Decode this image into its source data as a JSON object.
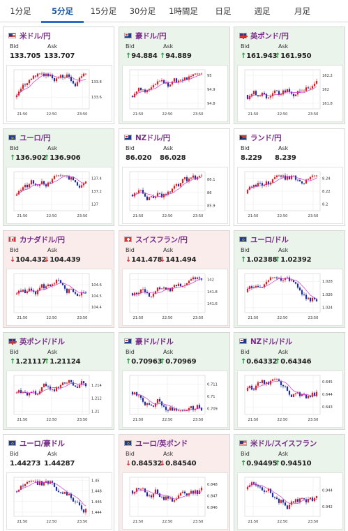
{
  "tabs": [
    {
      "label": "1分足",
      "active": false
    },
    {
      "label": "5分足",
      "active": true
    },
    {
      "label": "15分足",
      "active": false
    },
    {
      "label": "30分足",
      "active": false
    },
    {
      "label": "1時間足",
      "active": false
    },
    {
      "label": "日足",
      "active": false
    },
    {
      "label": "週足",
      "active": false
    },
    {
      "label": "月足",
      "active": false
    }
  ],
  "labels": {
    "bid": "Bid",
    "ask": "Ask"
  },
  "colors": {
    "up_bg": "#eaf4ea",
    "down_bg": "#fbecec",
    "up": "#1f9a3a",
    "down": "#d23030",
    "pair": "#7b2d8c",
    "candle_up": "#d82020",
    "candle_down": "#1d2fa0",
    "ma": "#cc33cc"
  },
  "x_ticks": [
    "21:50",
    "22:50",
    "23:50"
  ],
  "cards": [
    {
      "pair": "米ドル/円",
      "flag": "us-flag-icon",
      "trend": "neutral",
      "bid": "133.705",
      "ask": "133.707",
      "arrow": "",
      "y_ticks": [
        "133.8",
        "133.6"
      ],
      "ylim": [
        133.45,
        133.95
      ]
    },
    {
      "pair": "豪ドル/円",
      "flag": "au-flag-icon",
      "trend": "up",
      "bid": "94.884",
      "ask": "94.889",
      "arrow": "↑",
      "y_ticks": [
        "95",
        "94.9",
        "94.8"
      ],
      "ylim": [
        94.76,
        95.04
      ]
    },
    {
      "pair": "英ポンド/円",
      "flag": "uk-flag-icon",
      "trend": "up",
      "bid": "161.943",
      "ask": "161.950",
      "arrow": "↑",
      "y_ticks": [
        "162.2",
        "162",
        "161.8"
      ],
      "ylim": [
        161.72,
        162.28
      ]
    },
    {
      "pair": "ユーロ/円",
      "flag": "eu-flag-icon",
      "trend": "up",
      "bid": "136.902",
      "ask": "136.906",
      "arrow": "↑",
      "y_ticks": [
        "137.4",
        "137.2",
        "137"
      ],
      "ylim": [
        136.9,
        137.5
      ]
    },
    {
      "pair": "NZドル/円",
      "flag": "nz-flag-icon",
      "trend": "neutral",
      "bid": "86.020",
      "ask": "86.028",
      "arrow": "",
      "y_ticks": [
        "86.1",
        "86",
        "85.9"
      ],
      "ylim": [
        85.86,
        86.16
      ]
    },
    {
      "pair": "ランド/円",
      "flag": "za-flag-icon",
      "trend": "neutral",
      "bid": "8.229",
      "ask": "8.239",
      "arrow": "",
      "y_ticks": [
        "8.24",
        "8.22",
        "8.2"
      ],
      "ylim": [
        8.19,
        8.25
      ]
    },
    {
      "pair": "カナダドル/円",
      "flag": "ca-flag-icon",
      "trend": "down",
      "bid": "104.432",
      "ask": "104.439",
      "arrow": "↓",
      "y_ticks": [
        "104.6",
        "104.5",
        "104.4"
      ],
      "ylim": [
        104.35,
        104.7
      ]
    },
    {
      "pair": "スイスフラン/円",
      "flag": "ch-flag-icon",
      "trend": "down",
      "bid": "141.478",
      "ask": "141.494",
      "arrow": "↓",
      "y_ticks": [
        "142",
        "141.8",
        "141.6"
      ],
      "ylim": [
        141.45,
        142.1
      ]
    },
    {
      "pair": "ユーロ/ドル",
      "flag": "eu-flag-icon",
      "trend": "up",
      "bid": "1.02388",
      "ask": "1.02392",
      "arrow": "↑",
      "y_ticks": [
        "1.028",
        "1.026",
        "1.024"
      ],
      "ylim": [
        1.0232,
        1.0292
      ]
    },
    {
      "pair": "英ポンド/ドル",
      "flag": "uk-flag-icon",
      "trend": "up",
      "bid": "1.21117",
      "ask": "1.21124",
      "arrow": "↑",
      "y_ticks": [
        "1.214",
        "1.212",
        "1.21"
      ],
      "ylim": [
        1.2095,
        1.2155
      ]
    },
    {
      "pair": "豪ドル/ドル",
      "flag": "au-flag-icon",
      "trend": "up",
      "bid": "0.70963",
      "ask": "0.70969",
      "arrow": "↑",
      "y_ticks": [
        "0.711",
        "0.71",
        "0.709"
      ],
      "ylim": [
        0.7085,
        0.7117
      ]
    },
    {
      "pair": "NZドル/ドル",
      "flag": "nz-flag-icon",
      "trend": "up",
      "bid": "0.64332",
      "ask": "0.64346",
      "arrow": "↑",
      "y_ticks": [
        "0.645",
        "0.644",
        "0.643"
      ],
      "ylim": [
        0.6424,
        0.6455
      ]
    },
    {
      "pair": "ユーロ/豪ドル",
      "flag": "eu-flag-icon",
      "trend": "neutral",
      "bid": "1.44273",
      "ask": "1.44287",
      "arrow": "",
      "y_ticks": [
        "1.45",
        "1.448",
        "1.446",
        "1.444"
      ],
      "ylim": [
        1.4432,
        1.4506
      ]
    },
    {
      "pair": "ユーロ/英ポンド",
      "flag": "eu-flag-icon",
      "trend": "down",
      "bid": "0.84532",
      "ask": "0.84540",
      "arrow": "↓",
      "y_ticks": [
        "0.848",
        "0.847",
        "0.846"
      ],
      "ylim": [
        0.8452,
        0.8486
      ]
    },
    {
      "pair": "米ドル/スイスフラン",
      "flag": "us-flag-icon",
      "trend": "up",
      "bid": "0.94495",
      "ask": "0.94510",
      "arrow": "↑",
      "y_ticks": [
        "0.944",
        "0.942"
      ],
      "ylim": [
        0.9408,
        0.9456
      ]
    }
  ]
}
